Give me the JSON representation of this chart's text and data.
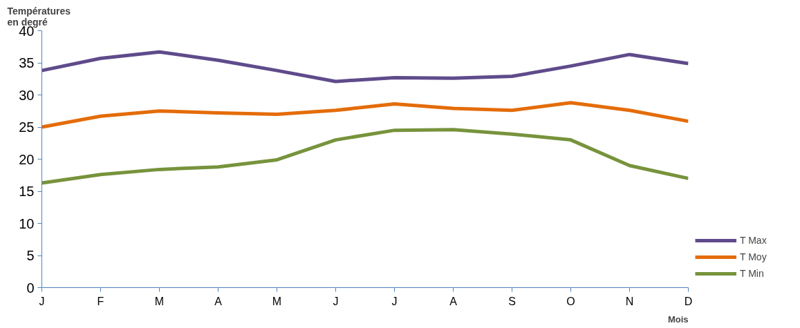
{
  "chart_data": {
    "type": "line",
    "ylabel": "Températures\nen degré",
    "xlabel": "Mois",
    "categories": [
      "J",
      "F",
      "M",
      "A",
      "M",
      "J",
      "J",
      "A",
      "S",
      "O",
      "N",
      "D"
    ],
    "ylim": [
      0,
      40
    ],
    "yticks": [
      0,
      5,
      10,
      15,
      20,
      25,
      30,
      35,
      40
    ],
    "grid": false,
    "legend": "right",
    "marker": "none",
    "line_style": "solid",
    "series": [
      {
        "name": "T Max",
        "color": "#5f4b8b",
        "values": [
          33.8,
          35.7,
          36.7,
          35.4,
          33.8,
          32.1,
          32.7,
          32.6,
          32.9,
          34.5,
          36.3,
          34.9
        ]
      },
      {
        "name": "T Moy",
        "color": "#e46c0a",
        "values": [
          25.0,
          26.7,
          27.5,
          27.2,
          27.0,
          27.6,
          28.6,
          27.9,
          27.6,
          28.8,
          27.6,
          25.9
        ]
      },
      {
        "name": "T Min",
        "color": "#77933c",
        "values": [
          16.3,
          17.6,
          18.4,
          18.8,
          19.9,
          23.0,
          24.5,
          24.6,
          23.9,
          23.0,
          19.0,
          17.0
        ]
      }
    ]
  }
}
